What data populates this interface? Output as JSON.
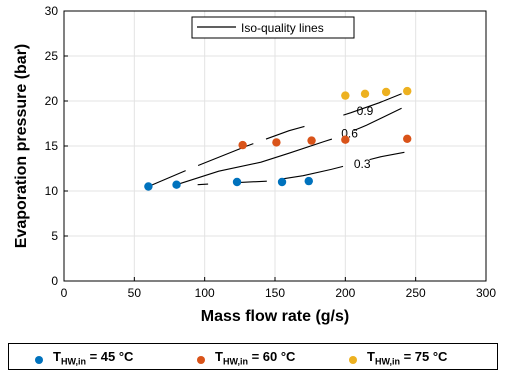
{
  "chart_data": {
    "type": "scatter",
    "xlabel": "Mass flow rate (g/s)",
    "ylabel": "Evaporation pressure (bar)",
    "xlim": [
      0,
      300
    ],
    "ylim": [
      0,
      30
    ],
    "xticks": [
      0,
      50,
      100,
      150,
      200,
      250,
      300
    ],
    "yticks": [
      0,
      5,
      10,
      15,
      20,
      25,
      30
    ],
    "grid": true,
    "series": [
      {
        "name_main": "T",
        "name_sub": "HW,in",
        "name_rest": " = 45 °C",
        "color": "#0072BD",
        "points": [
          [
            60,
            10.5
          ],
          [
            80,
            10.7
          ],
          [
            123,
            11.0
          ],
          [
            155,
            11.0
          ],
          [
            174,
            11.1
          ]
        ]
      },
      {
        "name_main": "T",
        "name_sub": "HW,in",
        "name_rest": " = 60 °C",
        "color": "#D95319",
        "points": [
          [
            127,
            15.1
          ],
          [
            151,
            15.4
          ],
          [
            176,
            15.6
          ],
          [
            200,
            15.7
          ],
          [
            244,
            15.8
          ]
        ]
      },
      {
        "name_main": "T",
        "name_sub": "HW,in",
        "name_rest": " = 75 °C",
        "color": "#EDB120",
        "points": [
          [
            200,
            20.6
          ],
          [
            214,
            20.8
          ],
          [
            229,
            21.0
          ],
          [
            244,
            21.1
          ]
        ]
      }
    ],
    "iso_lines": [
      {
        "label": "0.9",
        "label_at": [
          214,
          18.9
        ],
        "points": [
          [
            60,
            10.5
          ],
          [
            90,
            12.5
          ],
          [
            130,
            15.0
          ],
          [
            160,
            16.7
          ],
          [
            190,
            18.0
          ],
          [
            204,
            18.7
          ],
          [
            224,
            19.8
          ],
          [
            240,
            20.8
          ]
        ],
        "dashes": [
          [
            0,
            0.15
          ],
          [
            0.2,
            0.42
          ],
          [
            0.47,
            0.62
          ],
          [
            0.77,
            1
          ]
        ]
      },
      {
        "label": "0.6",
        "label_at": [
          203,
          16.4
        ],
        "points": [
          [
            80,
            10.7
          ],
          [
            110,
            12.2
          ],
          [
            140,
            13.2
          ],
          [
            160,
            14.2
          ],
          [
            185,
            15.5
          ],
          [
            195,
            16.0
          ],
          [
            215,
            17.3
          ],
          [
            240,
            19.2
          ]
        ],
        "dashes": [
          [
            0,
            0.68
          ],
          [
            0.78,
            1
          ]
        ]
      },
      {
        "label": "0.3",
        "label_at": [
          212,
          13.0
        ],
        "points": [
          [
            95,
            10.7
          ],
          [
            105,
            10.8
          ],
          [
            145,
            11.1
          ],
          [
            170,
            11.7
          ],
          [
            190,
            12.4
          ],
          [
            200,
            12.8
          ],
          [
            225,
            13.8
          ],
          [
            242,
            14.3
          ]
        ],
        "dashes": [
          [
            0,
            0.05
          ],
          [
            0.18,
            0.33
          ],
          [
            0.4,
            0.7
          ],
          [
            0.83,
            1
          ]
        ]
      }
    ],
    "legend_top": "Iso-quality lines"
  }
}
